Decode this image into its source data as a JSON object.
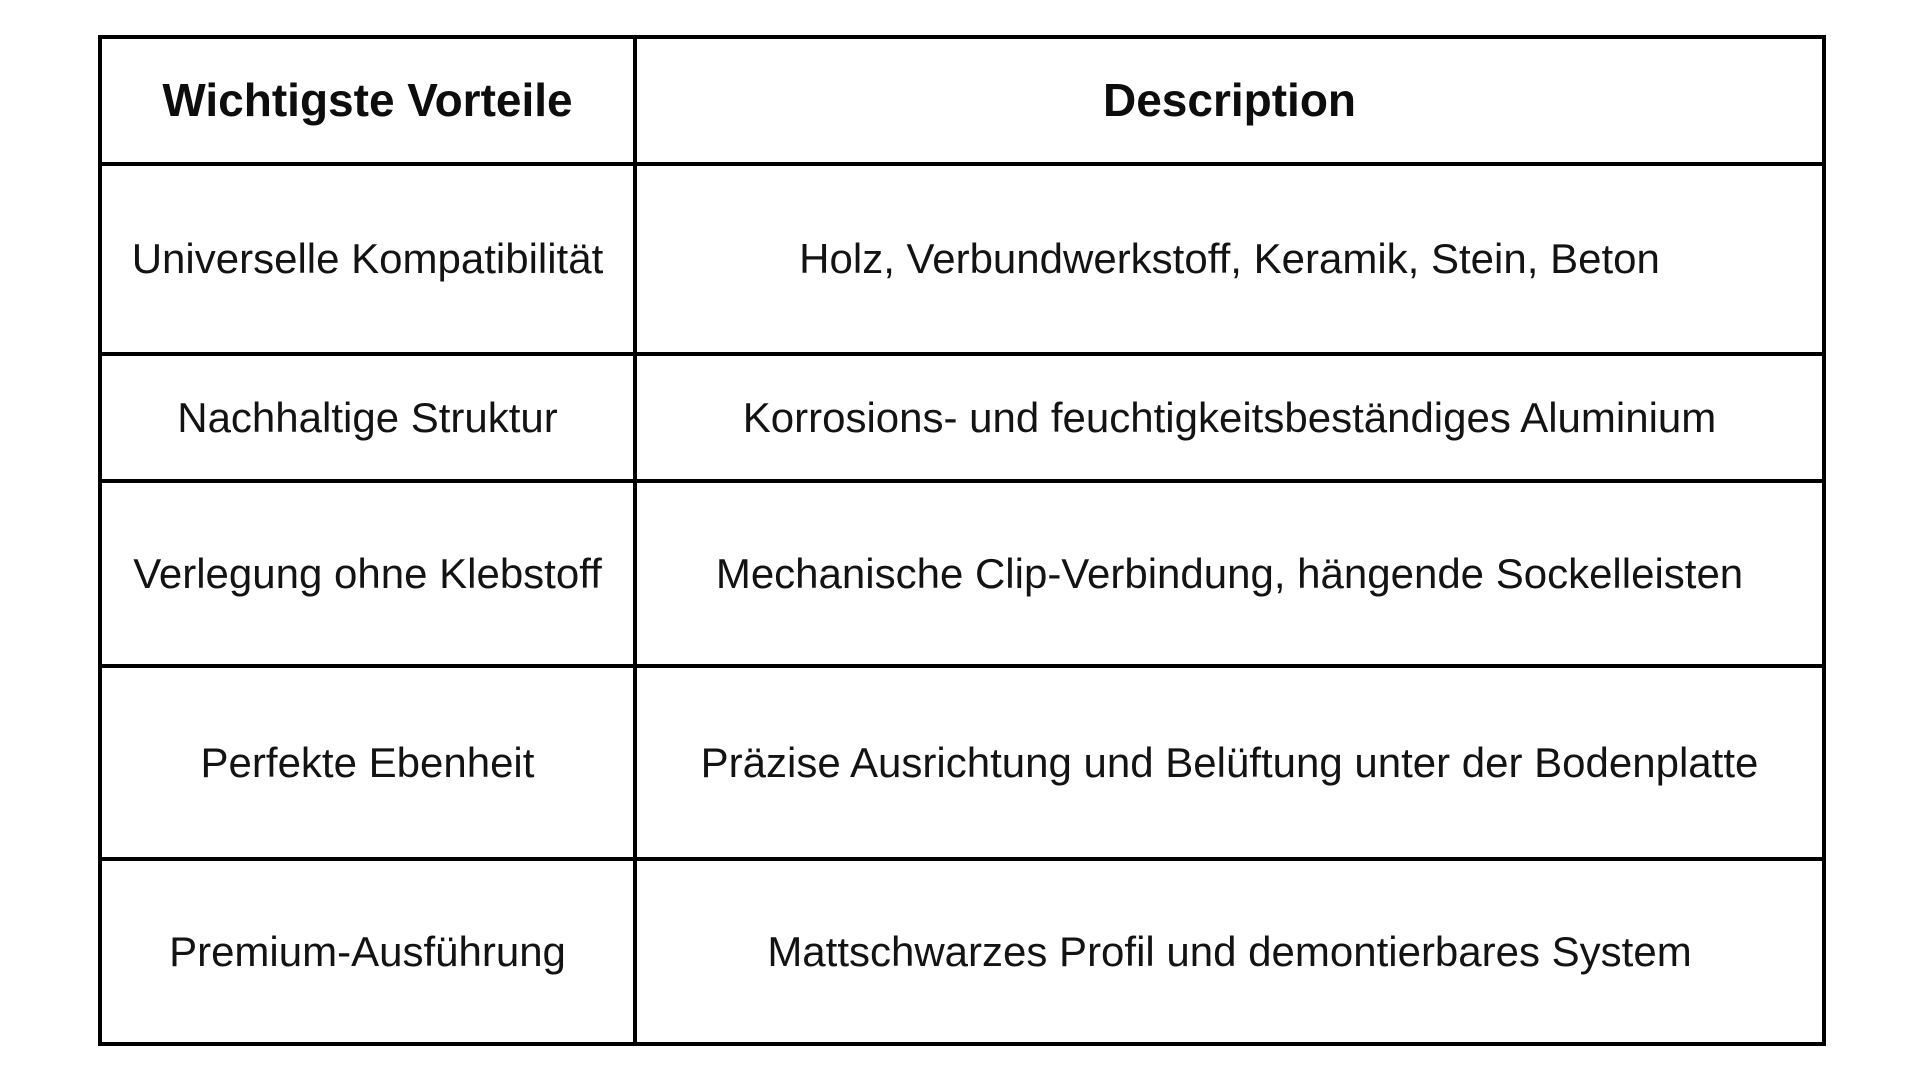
{
  "table": {
    "headers": [
      {
        "label": "Wichtigste Vorteile"
      },
      {
        "label": "Description"
      }
    ],
    "rows": [
      {
        "vorteil": "Universelle Kompatibilität",
        "description": "Holz, Verbundwerkstoff, Keramik, Stein, Beton"
      },
      {
        "vorteil": "Nachhaltige Struktur",
        "description": "Korrosions- und feuchtigkeitsbeständiges Aluminium"
      },
      {
        "vorteil": "Verlegung ohne Klebstoff",
        "description": "Mechanische Clip-Verbindung, hängende Sockelleisten"
      },
      {
        "vorteil": "Perfekte Ebenheit",
        "description": "Präzise Ausrichtung und Belüftung unter der Bodenplatte"
      },
      {
        "vorteil": "Premium-Ausführung",
        "description": "Mattschwarzes Profil und demontierbares System"
      }
    ],
    "colors": {
      "border": "#000000",
      "text": "#131313",
      "background": "#ffffff"
    }
  }
}
